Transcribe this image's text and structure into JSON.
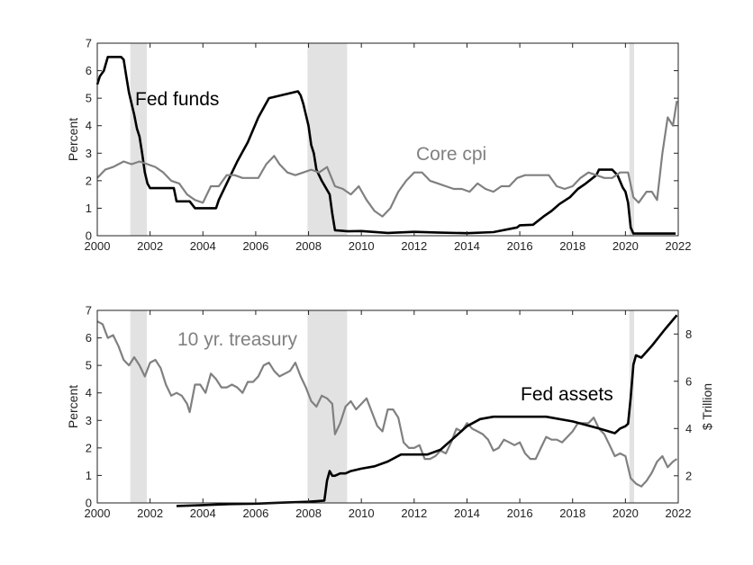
{
  "colors": {
    "black": "#000000",
    "gray": "#808080",
    "recession": "#e2e2e2",
    "axis": "#222222"
  },
  "chart_data": [
    {
      "type": "line",
      "panel": "top",
      "xlim": [
        2000,
        2022
      ],
      "ylim": [
        0,
        7
      ],
      "xticks": [
        2000,
        2002,
        2004,
        2006,
        2008,
        2010,
        2012,
        2014,
        2016,
        2018,
        2020,
        2022
      ],
      "yticks": [
        0,
        1,
        2,
        3,
        4,
        5,
        6,
        7
      ],
      "ylabel": "Percent",
      "shaded_periods": [
        [
          2001.25,
          2001.88
        ],
        [
          2007.96,
          2009.46
        ],
        [
          2020.15,
          2020.33
        ]
      ],
      "annotations": [
        {
          "text": "Fed funds",
          "series": "fed_funds"
        },
        {
          "text": "Core cpi",
          "series": "core_cpi"
        }
      ],
      "series": [
        {
          "name": "Fed funds",
          "key": "fed_funds",
          "color": "#000000",
          "x": [
            2000.0,
            2000.1,
            2000.25,
            2000.4,
            2000.9,
            2001.0,
            2001.1,
            2001.2,
            2001.3,
            2001.4,
            2001.5,
            2001.6,
            2001.7,
            2001.8,
            2001.9,
            2002.0,
            2002.9,
            2003.0,
            2003.5,
            2003.7,
            2004.5,
            2004.6,
            2004.9,
            2005.3,
            2005.7,
            2006.1,
            2006.5,
            2007.6,
            2007.7,
            2007.8,
            2007.9,
            2008.0,
            2008.1,
            2008.2,
            2008.3,
            2008.5,
            2008.8,
            2008.9,
            2009.0,
            2009.5,
            2010.0,
            2011.0,
            2012.0,
            2013.0,
            2014.0,
            2015.0,
            2015.9,
            2016.0,
            2016.5,
            2016.9,
            2017.2,
            2017.5,
            2017.9,
            2018.2,
            2018.5,
            2018.9,
            2019.0,
            2019.5,
            2019.7,
            2019.9,
            2020.0,
            2020.1,
            2020.2,
            2020.3,
            2021.0,
            2021.9
          ],
          "y": [
            5.5,
            5.8,
            6.0,
            6.5,
            6.5,
            6.4,
            5.8,
            5.2,
            4.8,
            4.4,
            3.9,
            3.6,
            3.0,
            2.3,
            1.9,
            1.73,
            1.73,
            1.25,
            1.25,
            1.0,
            1.0,
            1.3,
            1.9,
            2.7,
            3.4,
            4.3,
            5.0,
            5.25,
            5.1,
            4.8,
            4.4,
            4.0,
            3.3,
            3.0,
            2.4,
            2.0,
            1.5,
            0.8,
            0.2,
            0.16,
            0.17,
            0.1,
            0.14,
            0.11,
            0.09,
            0.13,
            0.3,
            0.38,
            0.4,
            0.7,
            0.9,
            1.15,
            1.4,
            1.7,
            1.9,
            2.2,
            2.4,
            2.4,
            2.2,
            1.75,
            1.6,
            1.2,
            0.3,
            0.08,
            0.08,
            0.08
          ]
        },
        {
          "name": "Core cpi",
          "key": "core_cpi",
          "color": "#808080",
          "x": [
            2000.0,
            2000.3,
            2000.6,
            2001.0,
            2001.3,
            2001.6,
            2001.9,
            2002.2,
            2002.5,
            2002.8,
            2003.1,
            2003.4,
            2003.7,
            2004.0,
            2004.3,
            2004.6,
            2004.9,
            2005.2,
            2005.5,
            2005.8,
            2006.1,
            2006.4,
            2006.7,
            2006.9,
            2007.2,
            2007.5,
            2007.8,
            2008.1,
            2008.4,
            2008.7,
            2009.0,
            2009.3,
            2009.6,
            2009.9,
            2010.2,
            2010.5,
            2010.8,
            2011.1,
            2011.4,
            2011.7,
            2012.0,
            2012.3,
            2012.6,
            2012.9,
            2013.2,
            2013.5,
            2013.8,
            2014.1,
            2014.4,
            2014.7,
            2015.0,
            2015.3,
            2015.6,
            2015.9,
            2016.2,
            2016.5,
            2016.8,
            2017.1,
            2017.4,
            2017.7,
            2018.0,
            2018.3,
            2018.6,
            2018.9,
            2019.2,
            2019.5,
            2019.8,
            2020.1,
            2020.3,
            2020.5,
            2020.8,
            2021.0,
            2021.2,
            2021.4,
            2021.6,
            2021.8,
            2021.95
          ],
          "y": [
            2.1,
            2.4,
            2.5,
            2.7,
            2.6,
            2.7,
            2.6,
            2.5,
            2.3,
            2.0,
            1.9,
            1.5,
            1.3,
            1.2,
            1.8,
            1.8,
            2.2,
            2.2,
            2.1,
            2.1,
            2.1,
            2.6,
            2.9,
            2.6,
            2.3,
            2.2,
            2.3,
            2.4,
            2.3,
            2.5,
            1.8,
            1.7,
            1.5,
            1.8,
            1.3,
            0.9,
            0.7,
            1.0,
            1.6,
            2.0,
            2.3,
            2.3,
            2.0,
            1.9,
            1.8,
            1.7,
            1.7,
            1.6,
            1.9,
            1.7,
            1.6,
            1.8,
            1.8,
            2.1,
            2.2,
            2.2,
            2.2,
            2.2,
            1.8,
            1.7,
            1.8,
            2.1,
            2.3,
            2.2,
            2.1,
            2.1,
            2.3,
            2.3,
            1.4,
            1.2,
            1.6,
            1.6,
            1.3,
            3.0,
            4.3,
            4.0,
            4.9
          ]
        }
      ]
    },
    {
      "type": "line",
      "panel": "bottom",
      "xlim": [
        2000,
        2022
      ],
      "ylim": [
        0,
        7
      ],
      "ylim_right": [
        0.85,
        9.0
      ],
      "xticks": [
        2000,
        2002,
        2004,
        2006,
        2008,
        2010,
        2012,
        2014,
        2016,
        2018,
        2020,
        2022
      ],
      "yticks": [
        0,
        1,
        2,
        3,
        4,
        5,
        6,
        7
      ],
      "yticks_right": [
        2,
        4,
        6,
        8
      ],
      "ylabel": "Percent",
      "ylabel_right": "$ Trillion",
      "shaded_periods": [
        [
          2001.25,
          2001.88
        ],
        [
          2007.96,
          2009.46
        ],
        [
          2020.15,
          2020.33
        ]
      ],
      "annotations": [
        {
          "text": "10 yr. treasury",
          "series": "treasury_10yr"
        },
        {
          "text": "Fed assets",
          "series": "fed_assets"
        }
      ],
      "series": [
        {
          "name": "10 yr. treasury",
          "key": "treasury_10yr",
          "axis": "left",
          "color": "#808080",
          "x": [
            2000.0,
            2000.2,
            2000.4,
            2000.6,
            2000.8,
            2001.0,
            2001.2,
            2001.4,
            2001.6,
            2001.8,
            2002.0,
            2002.2,
            2002.4,
            2002.6,
            2002.8,
            2003.0,
            2003.2,
            2003.4,
            2003.5,
            2003.7,
            2003.9,
            2004.1,
            2004.3,
            2004.5,
            2004.7,
            2004.9,
            2005.1,
            2005.3,
            2005.5,
            2005.7,
            2005.9,
            2006.1,
            2006.3,
            2006.5,
            2006.7,
            2006.9,
            2007.1,
            2007.3,
            2007.5,
            2007.7,
            2007.9,
            2008.1,
            2008.3,
            2008.5,
            2008.7,
            2008.9,
            2009.0,
            2009.2,
            2009.4,
            2009.6,
            2009.8,
            2010.0,
            2010.2,
            2010.4,
            2010.6,
            2010.8,
            2011.0,
            2011.2,
            2011.4,
            2011.6,
            2011.8,
            2012.0,
            2012.2,
            2012.4,
            2012.6,
            2012.8,
            2013.0,
            2013.2,
            2013.4,
            2013.6,
            2013.8,
            2014.0,
            2014.2,
            2014.4,
            2014.6,
            2014.8,
            2015.0,
            2015.2,
            2015.4,
            2015.6,
            2015.8,
            2016.0,
            2016.2,
            2016.4,
            2016.6,
            2016.8,
            2017.0,
            2017.2,
            2017.4,
            2017.6,
            2017.8,
            2018.0,
            2018.2,
            2018.4,
            2018.6,
            2018.8,
            2019.0,
            2019.2,
            2019.4,
            2019.6,
            2019.8,
            2020.0,
            2020.2,
            2020.4,
            2020.6,
            2020.8,
            2021.0,
            2021.2,
            2021.4,
            2021.6,
            2021.8,
            2021.95
          ],
          "y": [
            6.6,
            6.5,
            6.0,
            6.1,
            5.7,
            5.2,
            5.0,
            5.3,
            5.0,
            4.6,
            5.1,
            5.2,
            4.9,
            4.3,
            3.9,
            4.0,
            3.9,
            3.6,
            3.3,
            4.3,
            4.3,
            4.0,
            4.7,
            4.5,
            4.2,
            4.2,
            4.3,
            4.2,
            4.0,
            4.4,
            4.4,
            4.6,
            5.0,
            5.1,
            4.8,
            4.6,
            4.7,
            4.8,
            5.1,
            4.6,
            4.2,
            3.7,
            3.5,
            3.9,
            3.8,
            3.6,
            2.5,
            2.9,
            3.5,
            3.7,
            3.4,
            3.6,
            3.8,
            3.3,
            2.8,
            2.6,
            3.4,
            3.4,
            3.1,
            2.2,
            2.0,
            2.0,
            2.1,
            1.6,
            1.6,
            1.7,
            1.9,
            1.8,
            2.2,
            2.7,
            2.6,
            2.9,
            2.7,
            2.6,
            2.5,
            2.3,
            1.9,
            2.0,
            2.3,
            2.2,
            2.1,
            2.2,
            1.8,
            1.6,
            1.6,
            2.0,
            2.4,
            2.3,
            2.3,
            2.2,
            2.4,
            2.6,
            2.9,
            2.9,
            2.9,
            3.1,
            2.7,
            2.5,
            2.1,
            1.7,
            1.8,
            1.7,
            0.9,
            0.7,
            0.6,
            0.8,
            1.1,
            1.5,
            1.7,
            1.3,
            1.5,
            1.6
          ]
        },
        {
          "name": "Fed assets",
          "key": "fed_assets",
          "axis": "right",
          "color": "#000000",
          "x": [
            2003.0,
            2004.0,
            2005.0,
            2006.0,
            2007.0,
            2008.0,
            2008.6,
            2008.7,
            2008.8,
            2008.9,
            2009.0,
            2009.2,
            2009.4,
            2009.6,
            2010.0,
            2010.5,
            2011.0,
            2011.5,
            2012.0,
            2012.5,
            2013.0,
            2013.5,
            2014.0,
            2014.5,
            2015.0,
            2016.0,
            2017.0,
            2018.0,
            2019.0,
            2019.6,
            2019.8,
            2020.0,
            2020.1,
            2020.2,
            2020.3,
            2020.4,
            2020.6,
            2021.0,
            2021.5,
            2021.95
          ],
          "y": [
            0.72,
            0.76,
            0.8,
            0.82,
            0.86,
            0.9,
            0.95,
            1.8,
            2.2,
            2.0,
            2.0,
            2.1,
            2.1,
            2.2,
            2.3,
            2.4,
            2.6,
            2.9,
            2.9,
            2.9,
            3.1,
            3.6,
            4.1,
            4.4,
            4.5,
            4.5,
            4.5,
            4.3,
            4.0,
            3.8,
            4.0,
            4.1,
            4.2,
            5.3,
            6.7,
            7.1,
            7.0,
            7.5,
            8.2,
            8.8
          ]
        }
      ]
    }
  ]
}
